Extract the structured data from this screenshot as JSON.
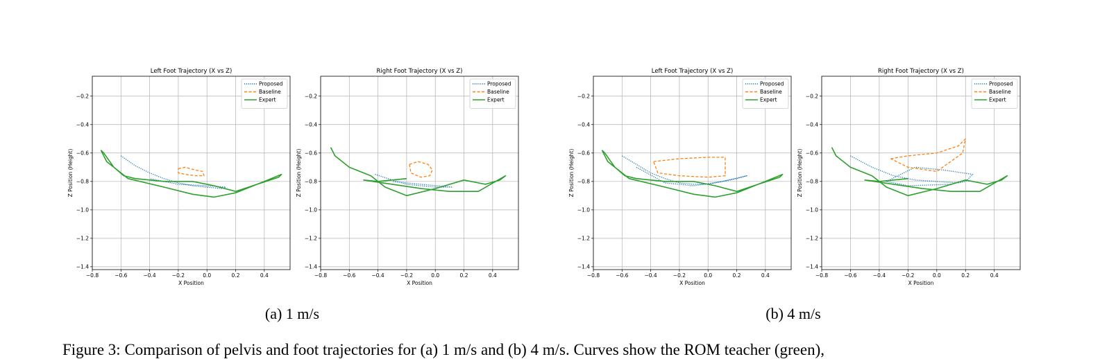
{
  "chart_data": [
    {
      "type": "line",
      "title": "Left Foot Trajectory (X vs Z)",
      "x_label": "X Position",
      "y_label": "Z Position (Height)",
      "xlim": [
        -0.8,
        0.58
      ],
      "ylim": [
        -1.42,
        -0.06
      ],
      "grid": true,
      "legend": "upper right",
      "xticks": [
        {
          "value": -0.8,
          "label": "−0.8"
        },
        {
          "value": -0.6,
          "label": "−0.6"
        },
        {
          "value": -0.4,
          "label": "−0.4"
        },
        {
          "value": -0.2,
          "label": "−0.2"
        },
        {
          "value": 0,
          "label": "0.0"
        },
        {
          "value": 0.2,
          "label": "0.2"
        },
        {
          "value": 0.4,
          "label": "0.4"
        }
      ],
      "yticks": [
        {
          "value": -1.4,
          "label": "−1.4"
        },
        {
          "value": -1.2,
          "label": "−1.2"
        },
        {
          "value": -1.0,
          "label": "−1.0"
        },
        {
          "value": -0.8,
          "label": "−0.8"
        },
        {
          "value": -0.6,
          "label": "−0.6"
        },
        {
          "value": -0.4,
          "label": "−0.4"
        },
        {
          "value": -0.2,
          "label": "−0.2"
        }
      ],
      "series": [
        {
          "name": "Proposed",
          "color": "#1f77b4",
          "style": "dotted",
          "x": [
            -0.6,
            -0.5,
            -0.4,
            -0.3,
            -0.2,
            -0.1,
            0,
            0.1,
            0.13,
            0,
            -0.2,
            -0.4
          ],
          "y": [
            -0.62,
            -0.69,
            -0.74,
            -0.78,
            -0.81,
            -0.83,
            -0.84,
            -0.85,
            -0.84,
            -0.83,
            -0.82,
            -0.78
          ]
        },
        {
          "name": "Baseline",
          "color": "#ff7f0e",
          "style": "dashed",
          "x": [
            -0.2,
            -0.15,
            -0.08,
            -0.03,
            -0.02,
            -0.08,
            -0.15,
            -0.2,
            -0.2
          ],
          "y": [
            -0.71,
            -0.7,
            -0.72,
            -0.73,
            -0.76,
            -0.76,
            -0.75,
            -0.74,
            -0.71
          ]
        },
        {
          "name": "Expert",
          "color": "#2ca02c",
          "style": "solid",
          "x": [
            -0.74,
            -0.72,
            -0.65,
            -0.58,
            -0.5,
            -0.3,
            -0.1,
            0.05,
            0.2,
            0.35,
            0.5,
            0.52,
            0.4,
            0.2,
            0.05,
            -0.1,
            -0.3,
            -0.55,
            -0.7,
            -0.74
          ],
          "y": [
            -0.58,
            -0.6,
            -0.7,
            -0.76,
            -0.78,
            -0.8,
            -0.8,
            -0.83,
            -0.87,
            -0.82,
            -0.77,
            -0.75,
            -0.8,
            -0.88,
            -0.91,
            -0.89,
            -0.84,
            -0.78,
            -0.66,
            -0.58
          ]
        }
      ]
    },
    {
      "type": "line",
      "title": "Right Foot Trajectory (X vs Z)",
      "x_label": "X Position",
      "y_label": "Z Position (Height)",
      "xlim": [
        -0.8,
        0.58
      ],
      "ylim": [
        -1.42,
        -0.06
      ],
      "grid": true,
      "legend": "upper right",
      "xticks": [
        {
          "value": -0.8,
          "label": "−0.8"
        },
        {
          "value": -0.6,
          "label": "−0.6"
        },
        {
          "value": -0.4,
          "label": "−0.4"
        },
        {
          "value": -0.2,
          "label": "−0.2"
        },
        {
          "value": 0,
          "label": "0.0"
        },
        {
          "value": 0.2,
          "label": "0.2"
        },
        {
          "value": 0.4,
          "label": "0.4"
        }
      ],
      "yticks": [
        {
          "value": -1.4,
          "label": "−1.4"
        },
        {
          "value": -1.2,
          "label": "−1.2"
        },
        {
          "value": -1.0,
          "label": "−1.0"
        },
        {
          "value": -0.8,
          "label": "−0.8"
        },
        {
          "value": -0.6,
          "label": "−0.6"
        },
        {
          "value": -0.4,
          "label": "−0.4"
        },
        {
          "value": -0.2,
          "label": "−0.2"
        }
      ],
      "series": [
        {
          "name": "Proposed",
          "color": "#1f77b4",
          "style": "dotted",
          "x": [
            -0.42,
            -0.3,
            -0.2,
            -0.1,
            0,
            0.1,
            0.12,
            -0.1,
            -0.3
          ],
          "y": [
            -0.75,
            -0.79,
            -0.82,
            -0.83,
            -0.84,
            -0.84,
            -0.84,
            -0.82,
            -0.8
          ]
        },
        {
          "name": "Baseline",
          "color": "#ff7f0e",
          "style": "dashed",
          "x": [
            -0.18,
            -0.12,
            -0.05,
            -0.02,
            -0.04,
            -0.1,
            -0.17,
            -0.18
          ],
          "y": [
            -0.68,
            -0.66,
            -0.68,
            -0.72,
            -0.76,
            -0.77,
            -0.74,
            -0.68
          ]
        },
        {
          "name": "Expert",
          "color": "#2ca02c",
          "style": "solid",
          "x": [
            -0.73,
            -0.7,
            -0.6,
            -0.45,
            -0.35,
            -0.2,
            0,
            0.2,
            0.35,
            0.45,
            0.49,
            0.3,
            0.1,
            -0.1,
            -0.3,
            -0.5,
            -0.4,
            -0.2
          ],
          "y": [
            -0.56,
            -0.62,
            -0.7,
            -0.76,
            -0.84,
            -0.9,
            -0.85,
            -0.79,
            -0.82,
            -0.79,
            -0.76,
            -0.87,
            -0.87,
            -0.85,
            -0.82,
            -0.79,
            -0.8,
            -0.78
          ]
        }
      ]
    },
    {
      "type": "line",
      "title": "Left Foot Trajectory (X vs Z)",
      "x_label": "X Position",
      "y_label": "Z Position (Height)",
      "xlim": [
        -0.8,
        0.58
      ],
      "ylim": [
        -1.42,
        -0.06
      ],
      "grid": true,
      "legend": "upper right",
      "xticks": [
        {
          "value": -0.8,
          "label": "−0.8"
        },
        {
          "value": -0.6,
          "label": "−0.6"
        },
        {
          "value": -0.4,
          "label": "−0.4"
        },
        {
          "value": -0.2,
          "label": "−0.2"
        },
        {
          "value": 0,
          "label": "0.0"
        },
        {
          "value": 0.2,
          "label": "0.2"
        },
        {
          "value": 0.4,
          "label": "0.4"
        }
      ],
      "yticks": [
        {
          "value": -1.4,
          "label": "−1.4"
        },
        {
          "value": -1.2,
          "label": "−1.2"
        },
        {
          "value": -1.0,
          "label": "−1.0"
        },
        {
          "value": -0.8,
          "label": "−0.8"
        },
        {
          "value": -0.6,
          "label": "−0.6"
        },
        {
          "value": -0.4,
          "label": "−0.4"
        },
        {
          "value": -0.2,
          "label": "−0.2"
        }
      ],
      "series": [
        {
          "name": "Proposed",
          "color": "#1f77b4",
          "style": "dotted",
          "x": [
            -0.6,
            -0.5,
            -0.4,
            -0.3,
            -0.2,
            -0.1,
            0,
            0.1,
            0.2,
            0.27,
            0.1,
            -0.1,
            -0.3,
            -0.5
          ],
          "y": [
            -0.62,
            -0.68,
            -0.74,
            -0.78,
            -0.81,
            -0.82,
            -0.82,
            -0.8,
            -0.78,
            -0.76,
            -0.8,
            -0.83,
            -0.81,
            -0.7
          ]
        },
        {
          "name": "Baseline",
          "color": "#ff7f0e",
          "style": "dashed",
          "x": [
            -0.38,
            -0.2,
            0,
            0.12,
            0.12,
            0,
            -0.2,
            -0.35,
            -0.38
          ],
          "y": [
            -0.66,
            -0.64,
            -0.63,
            -0.63,
            -0.76,
            -0.77,
            -0.76,
            -0.74,
            -0.66
          ]
        },
        {
          "name": "Expert",
          "color": "#2ca02c",
          "style": "solid",
          "x": [
            -0.74,
            -0.72,
            -0.65,
            -0.58,
            -0.5,
            -0.3,
            -0.1,
            0.05,
            0.2,
            0.35,
            0.5,
            0.52,
            0.4,
            0.2,
            0.05,
            -0.1,
            -0.3,
            -0.55,
            -0.7,
            -0.74
          ],
          "y": [
            -0.58,
            -0.6,
            -0.7,
            -0.76,
            -0.78,
            -0.8,
            -0.8,
            -0.83,
            -0.87,
            -0.82,
            -0.77,
            -0.75,
            -0.8,
            -0.88,
            -0.91,
            -0.89,
            -0.84,
            -0.78,
            -0.66,
            -0.58
          ]
        }
      ]
    },
    {
      "type": "line",
      "title": "Right Foot Trajectory (X vs Z)",
      "x_label": "X Position",
      "y_label": "Z Position (Height)",
      "xlim": [
        -0.8,
        0.58
      ],
      "ylim": [
        -1.42,
        -0.06
      ],
      "grid": true,
      "legend": "upper right",
      "xticks": [
        {
          "value": -0.8,
          "label": "−0.8"
        },
        {
          "value": -0.6,
          "label": "−0.6"
        },
        {
          "value": -0.4,
          "label": "−0.4"
        },
        {
          "value": -0.2,
          "label": "−0.2"
        },
        {
          "value": 0,
          "label": "0.0"
        },
        {
          "value": 0.2,
          "label": "0.2"
        },
        {
          "value": 0.4,
          "label": "0.4"
        }
      ],
      "yticks": [
        {
          "value": -1.4,
          "label": "−1.4"
        },
        {
          "value": -1.2,
          "label": "−1.2"
        },
        {
          "value": -1.0,
          "label": "−1.0"
        },
        {
          "value": -0.8,
          "label": "−0.8"
        },
        {
          "value": -0.6,
          "label": "−0.6"
        },
        {
          "value": -0.4,
          "label": "−0.4"
        },
        {
          "value": -0.2,
          "label": "−0.2"
        }
      ],
      "series": [
        {
          "name": "Proposed",
          "color": "#1f77b4",
          "style": "dotted",
          "x": [
            -0.6,
            -0.45,
            -0.3,
            -0.15,
            0,
            0.15,
            0.2,
            0.25,
            0.05,
            -0.15,
            -0.35,
            -0.2,
            0.1
          ],
          "y": [
            -0.62,
            -0.7,
            -0.76,
            -0.79,
            -0.8,
            -0.81,
            -0.8,
            -0.75,
            -0.72,
            -0.7,
            -0.8,
            -0.83,
            -0.82
          ]
        },
        {
          "name": "Baseline",
          "color": "#ff7f0e",
          "style": "dashed",
          "x": [
            -0.32,
            -0.2,
            0,
            0.15,
            0.2,
            0.18,
            0,
            -0.2,
            -0.32
          ],
          "y": [
            -0.64,
            -0.62,
            -0.6,
            -0.55,
            -0.5,
            -0.6,
            -0.73,
            -0.7,
            -0.64
          ]
        },
        {
          "name": "Expert",
          "color": "#2ca02c",
          "style": "solid",
          "x": [
            -0.73,
            -0.7,
            -0.6,
            -0.45,
            -0.35,
            -0.2,
            0,
            0.2,
            0.35,
            0.45,
            0.49,
            0.3,
            0.1,
            -0.1,
            -0.3,
            -0.5,
            -0.4,
            -0.2
          ],
          "y": [
            -0.56,
            -0.62,
            -0.7,
            -0.76,
            -0.84,
            -0.9,
            -0.85,
            -0.79,
            -0.82,
            -0.79,
            -0.76,
            -0.87,
            -0.87,
            -0.85,
            -0.82,
            -0.79,
            -0.8,
            -0.78
          ]
        }
      ]
    }
  ],
  "subcaptions": [
    "(a) 1 m/s",
    "(b) 4 m/s"
  ],
  "figure_caption": "Figure 3: Comparison of pelvis and foot trajectories for (a) 1 m/s and (b) 4 m/s. Curves show the ROM teacher (green),"
}
